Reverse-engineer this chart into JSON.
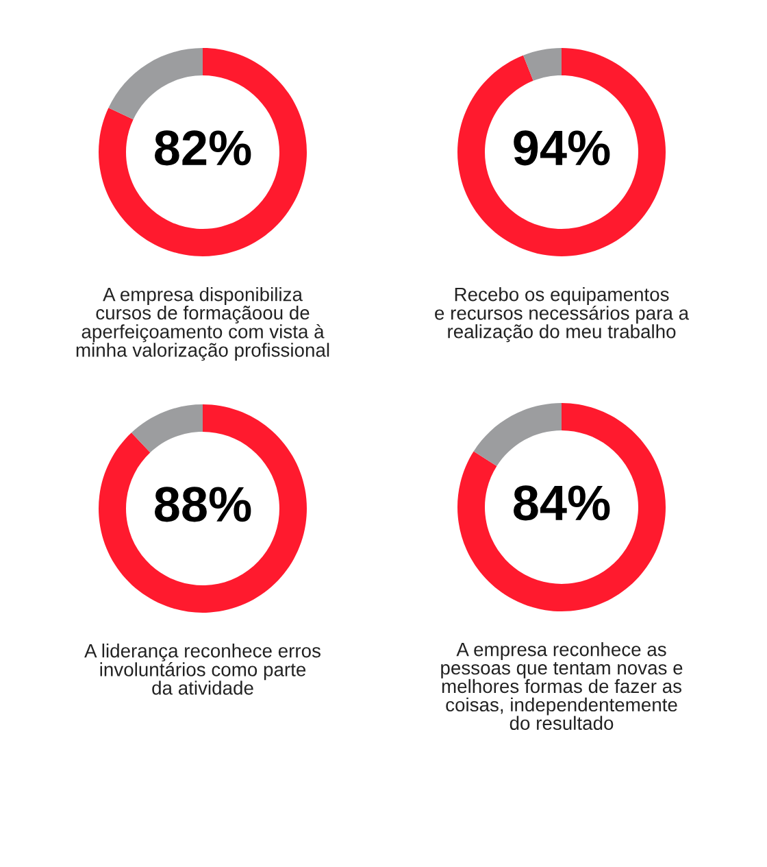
{
  "chart_data": [
    {
      "type": "donut",
      "title": "A empresa disponibiliza\ncursos de formaçãoou de\naperfeiçoamento com vista à\nminha valorização profissional",
      "categories": [
        null,
        null
      ],
      "values": [
        82,
        18
      ],
      "colors": [
        "#ff1a2e",
        "#9c9d9f"
      ],
      "value_labels": [
        "82%",
        null
      ]
    },
    {
      "type": "donut",
      "title": "Recebo os equipamentos\ne recursos necessários para a\nrealização do meu trabalho",
      "categories": [
        null,
        null
      ],
      "values": [
        94,
        6
      ],
      "colors": [
        "#ff1a2e",
        "#9c9d9f"
      ],
      "value_labels": [
        "94%",
        null
      ]
    },
    {
      "type": "donut",
      "title": "A liderança reconhece erros\ninvoluntários como parte\nda atividade",
      "categories": [
        null,
        null
      ],
      "values": [
        88,
        12
      ],
      "colors": [
        "#ff1a2e",
        "#9c9d9f"
      ],
      "value_labels": [
        "88%",
        null
      ]
    },
    {
      "type": "donut",
      "title": "A empresa reconhece as\npessoas que tentam novas e\nmelhores formas de fazer as\ncoisas, independentemente\ndo resultado",
      "categories": [
        null,
        null
      ],
      "values": [
        84,
        16
      ],
      "colors": [
        "#ff1a2e",
        "#9c9d9f"
      ],
      "value_labels": [
        "84%",
        null
      ]
    }
  ]
}
